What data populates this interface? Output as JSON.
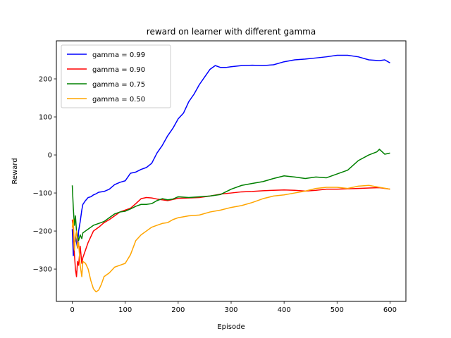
{
  "chart_data": {
    "type": "line",
    "title": "reward on learner with different gamma",
    "xlabel": "Episode",
    "ylabel": "Reward",
    "xlim": [
      -30,
      630
    ],
    "ylim": [
      -385,
      300
    ],
    "xticks": [
      0,
      100,
      200,
      300,
      400,
      500,
      600
    ],
    "yticks": [
      -300,
      -200,
      -100,
      0,
      100,
      200
    ],
    "legend_position": "top-left",
    "grid": false,
    "series": [
      {
        "name": "gamma = 0.99",
        "color": "#0000ff",
        "x": [
          0,
          2,
          4,
          6,
          8,
          10,
          12,
          15,
          18,
          20,
          25,
          30,
          35,
          40,
          45,
          50,
          60,
          70,
          80,
          90,
          100,
          110,
          120,
          130,
          140,
          150,
          160,
          170,
          180,
          190,
          200,
          210,
          220,
          230,
          240,
          250,
          260,
          270,
          280,
          290,
          300,
          320,
          340,
          360,
          380,
          400,
          420,
          440,
          460,
          480,
          500,
          520,
          540,
          560,
          580,
          590,
          600
        ],
        "y": [
          -195,
          -265,
          -245,
          -215,
          -230,
          -245,
          -200,
          -175,
          -145,
          -130,
          -120,
          -112,
          -110,
          -105,
          -102,
          -98,
          -96,
          -90,
          -78,
          -72,
          -68,
          -48,
          -45,
          -38,
          -33,
          -22,
          5,
          25,
          50,
          70,
          95,
          110,
          140,
          160,
          185,
          205,
          225,
          235,
          230,
          230,
          232,
          235,
          236,
          235,
          237,
          245,
          250,
          252,
          255,
          258,
          262,
          262,
          258,
          250,
          248,
          250,
          242
        ]
      },
      {
        "name": "gamma = 0.90",
        "color": "#ff0000",
        "x": [
          0,
          2,
          4,
          6,
          8,
          10,
          12,
          15,
          18,
          20,
          25,
          30,
          35,
          40,
          50,
          60,
          70,
          80,
          90,
          100,
          110,
          120,
          130,
          140,
          150,
          160,
          170,
          180,
          200,
          220,
          240,
          260,
          280,
          300,
          320,
          340,
          360,
          380,
          400,
          420,
          440,
          460,
          480,
          500,
          520,
          540,
          560,
          580,
          600
        ],
        "y": [
          -170,
          -200,
          -260,
          -300,
          -320,
          -280,
          -290,
          -240,
          -285,
          -270,
          -250,
          -230,
          -215,
          -200,
          -190,
          -178,
          -170,
          -160,
          -150,
          -145,
          -140,
          -128,
          -115,
          -112,
          -113,
          -116,
          -118,
          -120,
          -114,
          -113,
          -112,
          -108,
          -103,
          -100,
          -97,
          -96,
          -94,
          -93,
          -92,
          -93,
          -95,
          -93,
          -90,
          -90,
          -89,
          -88,
          -87,
          -86,
          -90
        ]
      },
      {
        "name": "gamma = 0.75",
        "color": "#008000",
        "x": [
          0,
          2,
          4,
          6,
          8,
          10,
          12,
          15,
          18,
          20,
          25,
          30,
          40,
          50,
          60,
          70,
          80,
          90,
          100,
          110,
          120,
          130,
          140,
          150,
          160,
          170,
          180,
          190,
          200,
          220,
          240,
          260,
          280,
          300,
          320,
          340,
          360,
          380,
          400,
          420,
          440,
          460,
          480,
          500,
          520,
          540,
          560,
          575,
          580,
          590,
          600
        ],
        "y": [
          -80,
          -140,
          -185,
          -160,
          -200,
          -215,
          -225,
          -210,
          -220,
          -205,
          -200,
          -195,
          -185,
          -180,
          -175,
          -165,
          -155,
          -150,
          -148,
          -142,
          -135,
          -130,
          -130,
          -128,
          -120,
          -115,
          -118,
          -116,
          -110,
          -112,
          -110,
          -108,
          -104,
          -90,
          -80,
          -75,
          -70,
          -62,
          -55,
          -58,
          -62,
          -58,
          -60,
          -50,
          -40,
          -15,
          0,
          8,
          15,
          2,
          5
        ]
      },
      {
        "name": "gamma = 0.50",
        "color": "#ffa500",
        "x": [
          0,
          2,
          4,
          6,
          8,
          10,
          12,
          15,
          18,
          20,
          25,
          30,
          35,
          40,
          45,
          50,
          55,
          60,
          70,
          80,
          90,
          100,
          110,
          120,
          130,
          140,
          150,
          160,
          170,
          180,
          190,
          200,
          220,
          240,
          260,
          280,
          300,
          320,
          340,
          360,
          380,
          400,
          420,
          440,
          460,
          480,
          500,
          520,
          540,
          560,
          580,
          600
        ],
        "y": [
          -190,
          -170,
          -250,
          -215,
          -200,
          -245,
          -230,
          -290,
          -320,
          -280,
          -285,
          -300,
          -330,
          -352,
          -360,
          -355,
          -340,
          -320,
          -310,
          -295,
          -290,
          -285,
          -262,
          -225,
          -210,
          -200,
          -190,
          -185,
          -180,
          -178,
          -170,
          -165,
          -160,
          -158,
          -150,
          -145,
          -138,
          -133,
          -125,
          -115,
          -108,
          -105,
          -100,
          -95,
          -88,
          -85,
          -85,
          -88,
          -82,
          -80,
          -85,
          -90
        ]
      }
    ]
  }
}
